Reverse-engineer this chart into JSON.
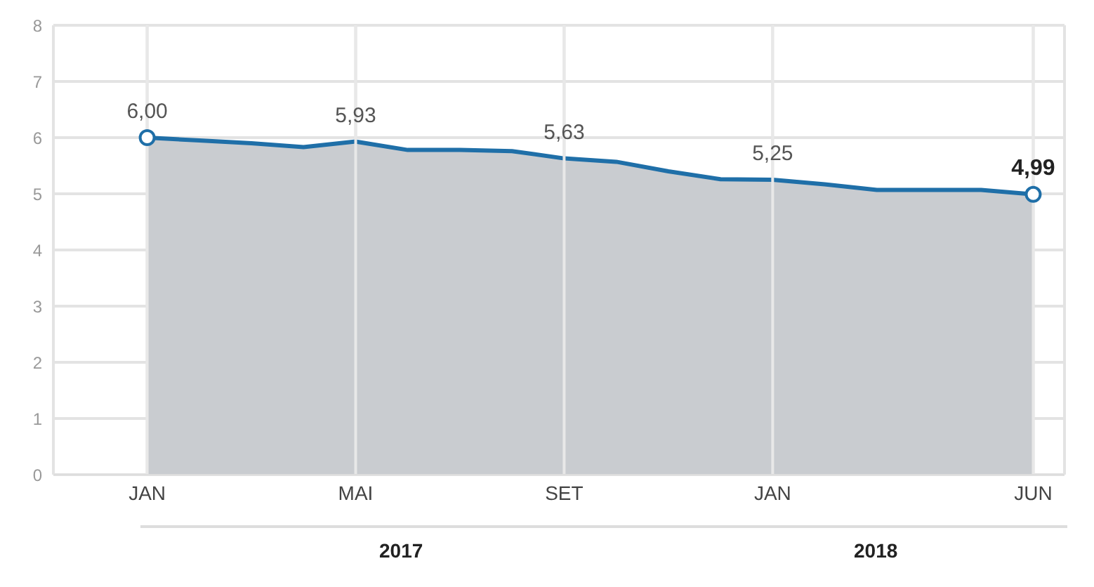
{
  "chart_data": {
    "type": "area",
    "categories": [
      "JAN",
      null,
      null,
      null,
      "MAI",
      null,
      null,
      null,
      "SET",
      null,
      null,
      null,
      "JAN",
      null,
      null,
      null,
      null,
      "JUN"
    ],
    "series": [
      {
        "color": "#1f6fa8",
        "values": [
          6.0,
          5.95,
          5.9,
          5.83,
          5.93,
          5.78,
          5.78,
          5.76,
          5.63,
          5.57,
          5.4,
          5.26,
          5.25,
          5.17,
          5.07,
          5.07,
          5.07,
          4.99
        ],
        "value_labels": [
          "6,00",
          null,
          null,
          null,
          "5,93",
          null,
          null,
          null,
          "5,63",
          null,
          null,
          null,
          "5,25",
          null,
          null,
          null,
          null,
          "4,99"
        ]
      }
    ],
    "ylim": [
      0,
      8
    ],
    "yticks": [
      0,
      1,
      2,
      3,
      4,
      5,
      6,
      7,
      8
    ],
    "grid": true,
    "annotations": [
      "2017",
      "2018"
    ]
  }
}
